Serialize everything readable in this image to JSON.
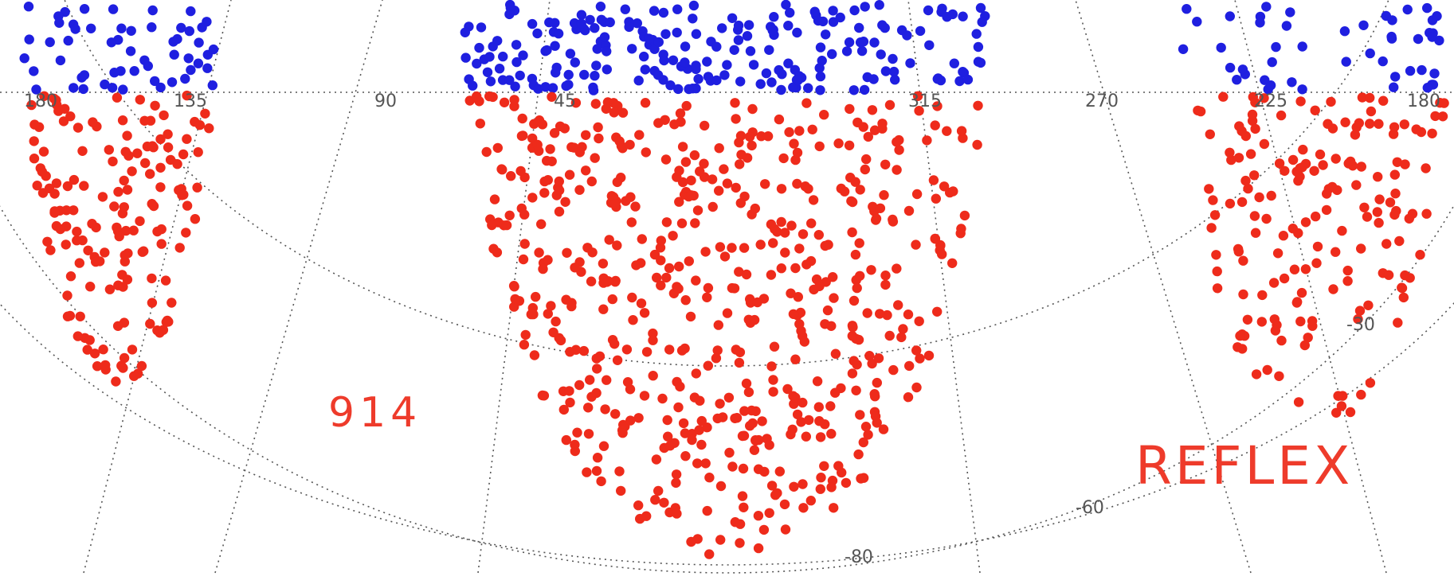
{
  "chart_data": {
    "type": "scatter",
    "projection": "polar sky map, south galactic cap",
    "longitude_tick_labels": [
      "180",
      "135",
      "90",
      "45",
      "315",
      "270",
      "225",
      "180"
    ],
    "latitude_tick_labels": [
      "-30",
      "-60",
      "-80"
    ],
    "annotations": {
      "count": "914",
      "survey": "REFLEX"
    },
    "series": [
      {
        "color": "#1f1fe0",
        "n_points": 320
      },
      {
        "color": "#ee2b1b",
        "n_points": 914
      }
    ],
    "grid": true
  }
}
